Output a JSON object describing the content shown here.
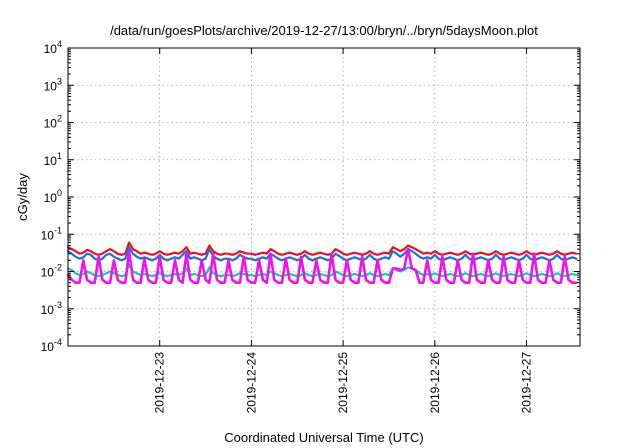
{
  "chart_data": {
    "type": "line",
    "title": "/data/run/goesPlots/archive/2019-12-27/13:00/bryn/../bryn/5daysMoon.plot",
    "xlabel": "Coordinated Universal Time (UTC)",
    "ylabel": "cGy/day",
    "yscale": "log",
    "ylim": [
      0.0001,
      10000
    ],
    "y_ticks": [
      {
        "base": "10",
        "exp": "4",
        "value": 10000
      },
      {
        "base": "10",
        "exp": "3",
        "value": 1000
      },
      {
        "base": "10",
        "exp": "2",
        "value": 100
      },
      {
        "base": "10",
        "exp": "1",
        "value": 10
      },
      {
        "base": "10",
        "exp": "0",
        "value": 1
      },
      {
        "base": "10",
        "exp": "-1",
        "value": 0.1
      },
      {
        "base": "10",
        "exp": "-2",
        "value": 0.01
      },
      {
        "base": "10",
        "exp": "-3",
        "value": 0.001
      },
      {
        "base": "10",
        "exp": "-4",
        "value": 0.0001
      }
    ],
    "xlim": [
      "2019-12-22 00:00",
      "2019-12-27 14:00"
    ],
    "x_ticks": [
      "2019-12-23",
      "2019-12-24",
      "2019-12-25",
      "2019-12-26",
      "2019-12-27"
    ],
    "grid": true,
    "legend": "none",
    "x_step_hours": 1,
    "series": [
      {
        "color": "#e8141c",
        "values": [
          0.045,
          0.04,
          0.035,
          0.03,
          0.032,
          0.038,
          0.035,
          0.03,
          0.028,
          0.03,
          0.035,
          0.04,
          0.035,
          0.03,
          0.028,
          0.03,
          0.06,
          0.04,
          0.035,
          0.03,
          0.032,
          0.03,
          0.028,
          0.03,
          0.035,
          0.03,
          0.028,
          0.03,
          0.032,
          0.03,
          0.035,
          0.045,
          0.03,
          0.032,
          0.03,
          0.028,
          0.03,
          0.05,
          0.035,
          0.03,
          0.028,
          0.03,
          0.03,
          0.028,
          0.03,
          0.035,
          0.032,
          0.03,
          0.03,
          0.028,
          0.03,
          0.032,
          0.03,
          0.04,
          0.035,
          0.03,
          0.028,
          0.03,
          0.032,
          0.03,
          0.028,
          0.03,
          0.035,
          0.03,
          0.028,
          0.03,
          0.032,
          0.03,
          0.028,
          0.03,
          0.04,
          0.035,
          0.03,
          0.028,
          0.03,
          0.032,
          0.03,
          0.028,
          0.03,
          0.035,
          0.03,
          0.028,
          0.03,
          0.032,
          0.03,
          0.045,
          0.04,
          0.035,
          0.04,
          0.05,
          0.045,
          0.04,
          0.035,
          0.03,
          0.032,
          0.03,
          0.035,
          0.03,
          0.028,
          0.03,
          0.032,
          0.03,
          0.028,
          0.03,
          0.035,
          0.03,
          0.028,
          0.03,
          0.032,
          0.03,
          0.028,
          0.03,
          0.035,
          0.03,
          0.028,
          0.03,
          0.032,
          0.03,
          0.028,
          0.03,
          0.035,
          0.03,
          0.028,
          0.03,
          0.032,
          0.03,
          0.028,
          0.03,
          0.035,
          0.03,
          0.028,
          0.03,
          0.032,
          0.03
        ]
      },
      {
        "color": "#1f6fe0",
        "values": [
          0.035,
          0.03,
          0.025,
          0.022,
          0.024,
          0.03,
          0.028,
          0.022,
          0.02,
          0.022,
          0.028,
          0.03,
          0.025,
          0.022,
          0.02,
          0.022,
          0.045,
          0.03,
          0.025,
          0.022,
          0.024,
          0.022,
          0.02,
          0.022,
          0.028,
          0.022,
          0.02,
          0.022,
          0.024,
          0.022,
          0.028,
          0.035,
          0.022,
          0.024,
          0.022,
          0.02,
          0.022,
          0.04,
          0.026,
          0.022,
          0.02,
          0.022,
          0.022,
          0.02,
          0.022,
          0.028,
          0.024,
          0.022,
          0.022,
          0.02,
          0.022,
          0.024,
          0.022,
          0.03,
          0.026,
          0.022,
          0.02,
          0.022,
          0.024,
          0.022,
          0.02,
          0.022,
          0.028,
          0.022,
          0.02,
          0.022,
          0.024,
          0.022,
          0.02,
          0.022,
          0.03,
          0.026,
          0.022,
          0.02,
          0.022,
          0.024,
          0.022,
          0.02,
          0.022,
          0.028,
          0.022,
          0.02,
          0.022,
          0.024,
          0.022,
          0.035,
          0.03,
          0.025,
          0.03,
          0.04,
          0.035,
          0.03,
          0.025,
          0.022,
          0.024,
          0.022,
          0.028,
          0.022,
          0.02,
          0.022,
          0.024,
          0.022,
          0.02,
          0.022,
          0.028,
          0.022,
          0.02,
          0.022,
          0.024,
          0.022,
          0.02,
          0.022,
          0.028,
          0.022,
          0.02,
          0.022,
          0.024,
          0.022,
          0.02,
          0.022,
          0.028,
          0.022,
          0.02,
          0.022,
          0.024,
          0.022,
          0.02,
          0.022,
          0.028,
          0.022,
          0.02,
          0.022,
          0.024,
          0.022
        ]
      },
      {
        "color": "#18c8a8",
        "values": [
          0.012,
          0.011,
          0.009,
          0.008,
          0.0085,
          0.01,
          0.009,
          0.008,
          0.0075,
          0.008,
          0.009,
          0.01,
          0.009,
          0.008,
          0.0075,
          0.008,
          0.015,
          0.01,
          0.009,
          0.008,
          0.0085,
          0.008,
          0.0075,
          0.008,
          0.009,
          0.008,
          0.0075,
          0.008,
          0.0085,
          0.008,
          0.009,
          0.012,
          0.008,
          0.0085,
          0.008,
          0.0075,
          0.008,
          0.013,
          0.009,
          0.008,
          0.0075,
          0.008,
          0.008,
          0.0075,
          0.008,
          0.009,
          0.0085,
          0.008,
          0.008,
          0.0075,
          0.008,
          0.0085,
          0.008,
          0.01,
          0.009,
          0.008,
          0.0075,
          0.008,
          0.0085,
          0.008,
          0.0075,
          0.008,
          0.009,
          0.008,
          0.0075,
          0.008,
          0.0085,
          0.008,
          0.0075,
          0.008,
          0.01,
          0.009,
          0.008,
          0.0075,
          0.008,
          0.0085,
          0.008,
          0.0075,
          0.008,
          0.009,
          0.008,
          0.0075,
          0.008,
          0.0085,
          0.008,
          0.012,
          0.011,
          0.01,
          0.011,
          0.013,
          0.012,
          0.011,
          0.009,
          0.008,
          0.0085,
          0.008,
          0.009,
          0.008,
          0.0075,
          0.008,
          0.0085,
          0.008,
          0.0075,
          0.008,
          0.009,
          0.008,
          0.0075,
          0.008,
          0.0085,
          0.008,
          0.0075,
          0.008,
          0.009,
          0.008,
          0.0075,
          0.008,
          0.0085,
          0.008,
          0.0075,
          0.008,
          0.009,
          0.008,
          0.0075,
          0.008,
          0.0085,
          0.008,
          0.0075,
          0.008,
          0.009,
          0.008,
          0.0075,
          0.008,
          0.0085,
          0.008
        ]
      },
      {
        "color": "#f010f0",
        "values": [
          0.008,
          0.006,
          0.005,
          0.005,
          0.02,
          0.006,
          0.005,
          0.005,
          0.025,
          0.006,
          0.005,
          0.005,
          0.02,
          0.006,
          0.005,
          0.005,
          0.035,
          0.006,
          0.005,
          0.005,
          0.022,
          0.006,
          0.005,
          0.005,
          0.025,
          0.006,
          0.005,
          0.005,
          0.02,
          0.006,
          0.005,
          0.03,
          0.006,
          0.005,
          0.005,
          0.02,
          0.006,
          0.005,
          0.03,
          0.006,
          0.005,
          0.005,
          0.02,
          0.006,
          0.005,
          0.005,
          0.025,
          0.006,
          0.005,
          0.005,
          0.02,
          0.006,
          0.005,
          0.03,
          0.006,
          0.005,
          0.005,
          0.022,
          0.006,
          0.005,
          0.005,
          0.025,
          0.006,
          0.005,
          0.005,
          0.02,
          0.006,
          0.005,
          0.005,
          0.03,
          0.006,
          0.005,
          0.005,
          0.02,
          0.006,
          0.005,
          0.005,
          0.025,
          0.006,
          0.005,
          0.005,
          0.02,
          0.006,
          0.005,
          0.005,
          0.012,
          0.012,
          0.011,
          0.012,
          0.04,
          0.012,
          0.011,
          0.005,
          0.005,
          0.02,
          0.006,
          0.005,
          0.005,
          0.025,
          0.006,
          0.005,
          0.005,
          0.02,
          0.006,
          0.005,
          0.005,
          0.03,
          0.006,
          0.005,
          0.005,
          0.02,
          0.006,
          0.005,
          0.005,
          0.025,
          0.006,
          0.005,
          0.005,
          0.02,
          0.006,
          0.005,
          0.005,
          0.03,
          0.006,
          0.005,
          0.005,
          0.02,
          0.006,
          0.005,
          0.005,
          0.025,
          0.006,
          0.005,
          0.005
        ]
      }
    ]
  }
}
